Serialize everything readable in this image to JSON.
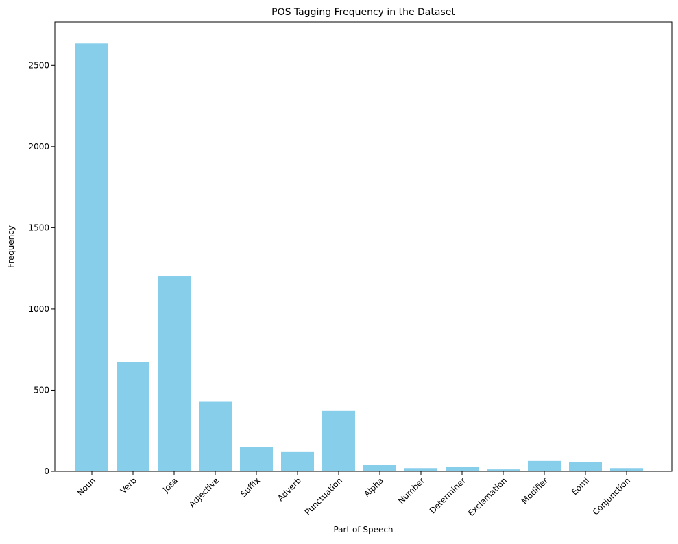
{
  "chart_data": {
    "type": "bar",
    "title": "POS Tagging Frequency in the Dataset",
    "xlabel": "Part of Speech",
    "ylabel": "Frequency",
    "categories": [
      "Noun",
      "Verb",
      "Josa",
      "Adjective",
      "Suffix",
      "Adverb",
      "Punctuation",
      "Alpha",
      "Number",
      "Determiner",
      "Exclamation",
      "Modifier",
      "Eomi",
      "Conjunction"
    ],
    "values": [
      2635,
      672,
      1202,
      428,
      150,
      123,
      372,
      42,
      20,
      26,
      12,
      64,
      55,
      20
    ],
    "ylim": [
      0,
      2767
    ],
    "yticks": [
      0,
      500,
      1000,
      1500,
      2000,
      2500
    ],
    "grid": false,
    "bar_color": "#87ceeb"
  }
}
